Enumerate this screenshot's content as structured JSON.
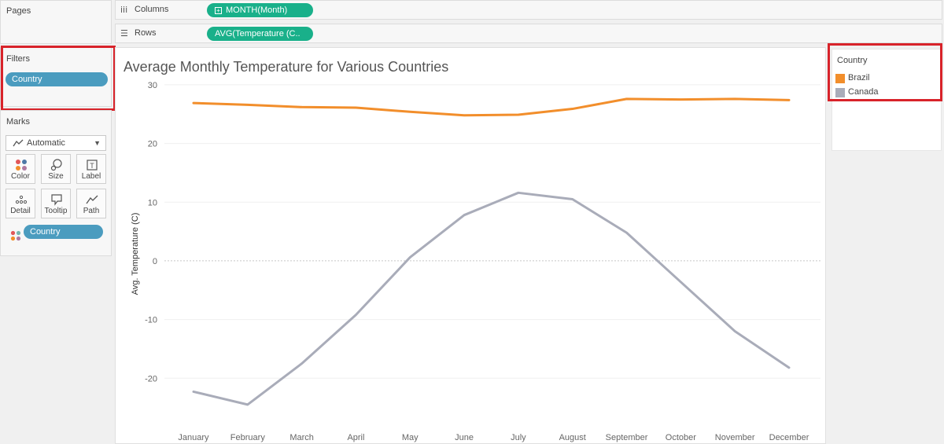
{
  "pages": {
    "title": "Pages"
  },
  "filters": {
    "title": "Filters",
    "pill": "Country"
  },
  "marks": {
    "title": "Marks",
    "type": "Automatic",
    "buttons": [
      "Color",
      "Size",
      "Label",
      "Detail",
      "Tooltip",
      "Path"
    ],
    "pill": "Country"
  },
  "shelves": {
    "columns_label": "Columns",
    "columns_pill": "MONTH(Month)",
    "rows_label": "Rows",
    "rows_pill": "AVG(Temperature (C.."
  },
  "legend": {
    "title": "Country",
    "items": [
      {
        "label": "Brazil",
        "color": "#f28e2b"
      },
      {
        "label": "Canada",
        "color": "#a9acb9"
      }
    ]
  },
  "colors": {
    "pill_blue": "#4b9cbf",
    "pill_green": "#19b08a",
    "highlight": "#d8232a"
  },
  "chart_data": {
    "type": "line",
    "title": "Average Monthly Temperature for Various Countries",
    "ylabel": "Avg. Temperature (C)",
    "xlabel": "",
    "categories": [
      "January",
      "February",
      "March",
      "April",
      "May",
      "June",
      "July",
      "August",
      "September",
      "October",
      "November",
      "December"
    ],
    "yticks": [
      30,
      20,
      10,
      0,
      -10,
      -20
    ],
    "ylim": [
      -28,
      32
    ],
    "grid": true,
    "series": [
      {
        "name": "Brazil",
        "color": "#f28e2b",
        "values": [
          26.9,
          26.6,
          26.2,
          26.1,
          25.4,
          24.8,
          24.9,
          25.9,
          27.6,
          27.5,
          27.6,
          27.4
        ]
      },
      {
        "name": "Canada",
        "color": "#a9acb9",
        "values": [
          -22.3,
          -24.5,
          -17.5,
          -9.2,
          0.6,
          7.8,
          11.6,
          10.5,
          4.8,
          -3.6,
          -12.0,
          -18.2
        ]
      }
    ]
  }
}
